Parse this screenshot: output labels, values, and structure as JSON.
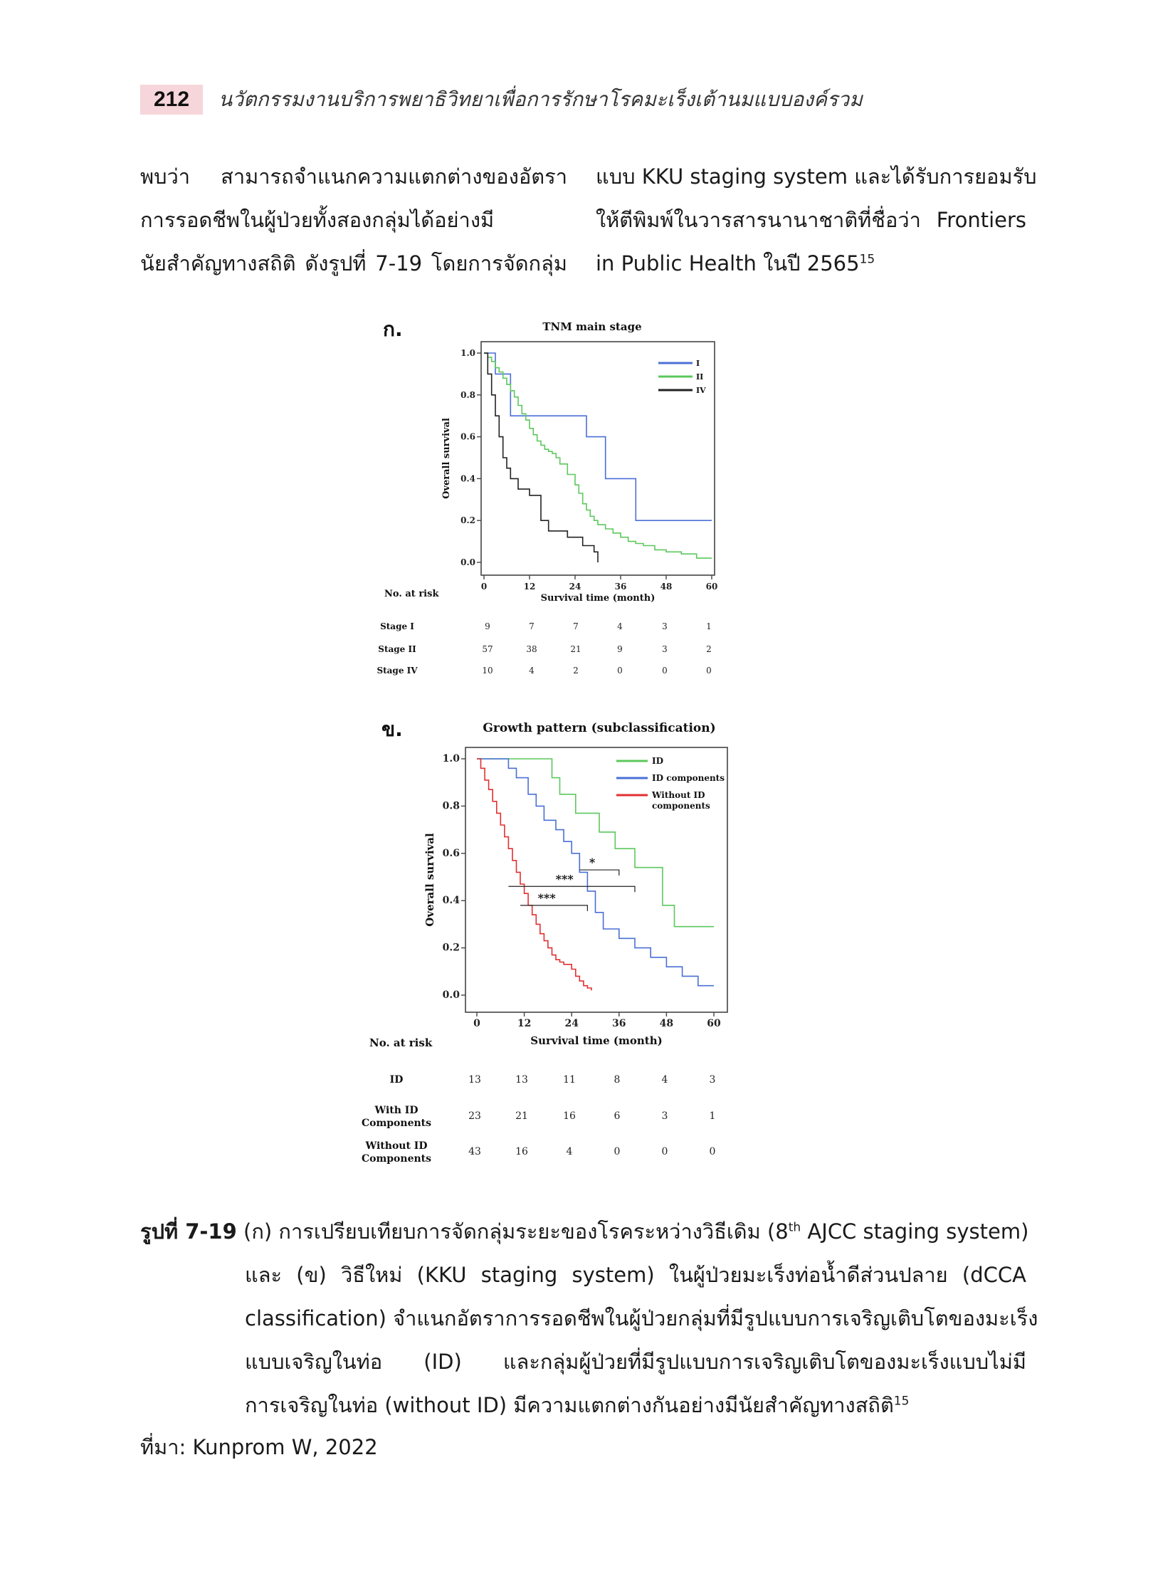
{
  "header": {
    "page_number": "212",
    "running_title": "นวัตกรรมงานบริการพยาธิวิทยาเพื่อการรักษาโรคมะเร็งเต้านมแบบองค์รวม"
  },
  "body_text": {
    "left_lines": [
      "พบว่า สามารถจำแนกความแตกต่างของอัตรา",
      "การรอดชีพในผู้ป่วยทั้งสองกลุ่มได้อย่างมี",
      "นัยสำคัญทางสถิติ ดังรูปที่ 7-19 โดยการจัดกลุ่ม"
    ],
    "right_lines": [
      "แบบ KKU staging system และได้รับการยอมรับ",
      "ให้ตีพิมพ์ในวารสารนานาชาติที่ชื่อว่า Frontiers",
      "in Public Health ในปี 2565"
    ],
    "right_ref": "15"
  },
  "chart_data": [
    {
      "type": "line",
      "panel_label": "ก.",
      "title": "TNM main stage",
      "xlabel": "Survival time (month)",
      "ylabel": "Overall survival",
      "xlim": [
        0,
        60
      ],
      "ylim": [
        0.0,
        1.0
      ],
      "x_ticks": [
        "0",
        "12",
        "24",
        "36",
        "48",
        "60"
      ],
      "y_ticks": [
        "0.0",
        "0.2",
        "0.4",
        "0.6",
        "0.8",
        "1.0"
      ],
      "legend_position": "top-right",
      "series": [
        {
          "name": "I",
          "color": "#4a6fd6",
          "x": [
            0,
            3,
            7,
            27,
            32,
            40,
            60
          ],
          "y": [
            1.0,
            0.9,
            0.7,
            0.6,
            0.4,
            0.2,
            0.2
          ]
        },
        {
          "name": "II",
          "color": "#5cc85c",
          "x": [
            0,
            1,
            2,
            3,
            4,
            5,
            6,
            7,
            8,
            9,
            10,
            11,
            12,
            13,
            14,
            15,
            16,
            17,
            18,
            19,
            20,
            22,
            24,
            25,
            26,
            27,
            28,
            29,
            30,
            32,
            34,
            36,
            38,
            40,
            42,
            45,
            48,
            52,
            56,
            60
          ],
          "y": [
            1.0,
            0.98,
            0.96,
            0.93,
            0.91,
            0.88,
            0.85,
            0.82,
            0.79,
            0.75,
            0.71,
            0.68,
            0.64,
            0.61,
            0.58,
            0.56,
            0.54,
            0.53,
            0.52,
            0.5,
            0.47,
            0.42,
            0.37,
            0.33,
            0.28,
            0.25,
            0.22,
            0.2,
            0.18,
            0.16,
            0.14,
            0.12,
            0.1,
            0.09,
            0.08,
            0.06,
            0.05,
            0.04,
            0.02,
            0.02
          ]
        },
        {
          "name": "IV",
          "color": "#222222",
          "x": [
            0,
            1,
            2,
            3,
            4,
            5,
            6,
            7,
            9,
            12,
            15,
            17,
            22,
            26,
            29,
            30
          ],
          "y": [
            1.0,
            0.9,
            0.8,
            0.7,
            0.6,
            0.5,
            0.45,
            0.4,
            0.35,
            0.32,
            0.2,
            0.15,
            0.12,
            0.08,
            0.05,
            0.0
          ]
        }
      ],
      "risk_table": {
        "label": "No. at risk",
        "rows": [
          {
            "name": "Stage I",
            "values": [
              "9",
              "7",
              "7",
              "4",
              "3",
              "1"
            ]
          },
          {
            "name": "Stage II",
            "values": [
              "57",
              "38",
              "21",
              "9",
              "3",
              "2"
            ]
          },
          {
            "name": "Stage IV",
            "values": [
              "10",
              "4",
              "2",
              "0",
              "0",
              "0"
            ]
          }
        ]
      }
    },
    {
      "type": "line",
      "panel_label": "ข.",
      "title": "Growth pattern (subclassification)",
      "xlabel": "Survival time (month)",
      "ylabel": "Overall survival",
      "xlim": [
        0,
        60
      ],
      "ylim": [
        0.0,
        1.0
      ],
      "x_ticks": [
        "0",
        "12",
        "24",
        "36",
        "48",
        "60"
      ],
      "y_ticks": [
        "0.0",
        "0.2",
        "0.4",
        "0.6",
        "0.8",
        "1.0"
      ],
      "legend_position": "top-right",
      "series": [
        {
          "name": "ID",
          "color": "#5cc85c",
          "x": [
            0,
            19,
            21,
            25,
            31,
            35,
            40,
            47,
            50,
            60
          ],
          "y": [
            1.0,
            0.92,
            0.85,
            0.77,
            0.69,
            0.62,
            0.54,
            0.38,
            0.29,
            0.29
          ]
        },
        {
          "name": "ID components",
          "color": "#4a6fd6",
          "x": [
            0,
            8,
            10,
            13,
            15,
            17,
            20,
            22,
            24,
            26,
            28,
            30,
            32,
            36,
            40,
            44,
            48,
            52,
            56,
            60
          ],
          "y": [
            1.0,
            0.96,
            0.92,
            0.85,
            0.8,
            0.74,
            0.7,
            0.65,
            0.6,
            0.52,
            0.44,
            0.35,
            0.28,
            0.24,
            0.2,
            0.16,
            0.12,
            0.08,
            0.04,
            0.04
          ]
        },
        {
          "name": "Without ID components",
          "color": "#e23030",
          "x": [
            0,
            1,
            2,
            3,
            4,
            5,
            6,
            7,
            8,
            9,
            10,
            11,
            12,
            13,
            14,
            15,
            16,
            17,
            18,
            19,
            20,
            21,
            22,
            24,
            25,
            26,
            27,
            28,
            29
          ],
          "y": [
            1.0,
            0.96,
            0.91,
            0.87,
            0.82,
            0.77,
            0.72,
            0.67,
            0.62,
            0.57,
            0.52,
            0.47,
            0.43,
            0.38,
            0.34,
            0.3,
            0.26,
            0.23,
            0.2,
            0.17,
            0.15,
            0.14,
            0.13,
            0.11,
            0.08,
            0.06,
            0.04,
            0.03,
            0.02
          ]
        }
      ],
      "annotations": [
        "*",
        "***",
        "***"
      ],
      "risk_table": {
        "label": "No. at risk",
        "rows": [
          {
            "name": "ID",
            "values": [
              "13",
              "13",
              "11",
              "8",
              "4",
              "3"
            ]
          },
          {
            "name": "With ID Components",
            "values": [
              "23",
              "21",
              "16",
              "6",
              "3",
              "1"
            ]
          },
          {
            "name": "Without ID Components",
            "values": [
              "43",
              "16",
              "4",
              "0",
              "0",
              "0"
            ]
          }
        ]
      }
    }
  ],
  "caption": {
    "label": "รูปที่ 7-19",
    "line1_pre": " (ก) การเปรียบเทียบการจัดกลุ่มระยะของโรคระหว่างวิธีเดิม (8",
    "line1_sup": "th",
    "line1_post": " AJCC staging system)",
    "lines": [
      "และ (ข) วิธีใหม่ (KKU staging system) ในผู้ป่วยมะเร็งท่อน้ำดีส่วนปลาย (dCCA",
      "classification) จำแนกอัตราการรอดชีพในผู้ป่วยกลุ่มที่มีรูปแบบการเจริญเติบโตของมะเร็ง",
      "แบบเจริญในท่อ (ID) และกลุ่มผู้ป่วยที่มีรูปแบบการเจริญเติบโตของมะเร็งแบบไม่มี",
      "การเจริญในท่อ (without ID) มีความแตกต่างกันอย่างมีนัยสำคัญทางสถิติ"
    ],
    "last_ref": "15"
  },
  "source": "ที่มา: Kunprom W, 2022"
}
